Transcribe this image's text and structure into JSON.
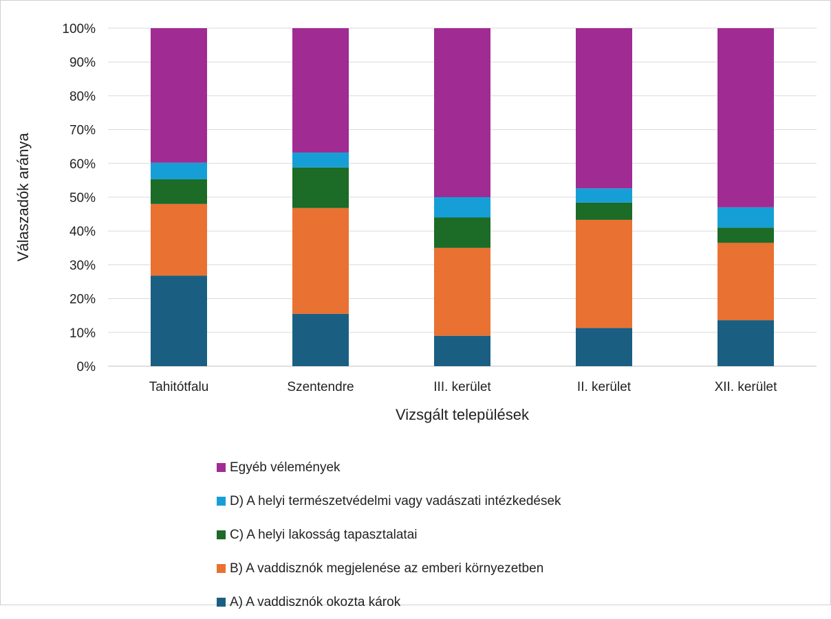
{
  "chart_data": {
    "type": "bar",
    "stacked": true,
    "percent": true,
    "xlabel": "Vizsgált települések",
    "ylabel": "Válaszadók aránya",
    "ylim": [
      0,
      100
    ],
    "yticks": [
      "0%",
      "10%",
      "20%",
      "30%",
      "40%",
      "50%",
      "60%",
      "70%",
      "80%",
      "90%",
      "100%"
    ],
    "grid": true,
    "legend_position": "bottom",
    "categories": [
      "Tahitótfalu",
      "Szentendre",
      "III. kerület",
      "II. kerület",
      "XII. kerület"
    ],
    "series": [
      {
        "name": "A) A vaddisznók okozta károk",
        "color": "#1a5f82",
        "values": [
          26.8,
          15.5,
          9.0,
          11.3,
          13.6
        ]
      },
      {
        "name": "B) A vaddisznók megjelenése az emberi környezetben",
        "color": "#e97132",
        "values": [
          21.2,
          31.3,
          26.0,
          32.0,
          22.9
        ]
      },
      {
        "name": "C) A helyi lakosság tapasztalatai",
        "color": "#1c6b27",
        "values": [
          7.3,
          12.0,
          9.0,
          5.1,
          4.5
        ]
      },
      {
        "name": "D) A helyi természetvédelmi vagy vadászati intézkedések",
        "color": "#169fd7",
        "values": [
          4.9,
          4.4,
          6.0,
          4.2,
          6.0
        ]
      },
      {
        "name": "Egyéb vélemények",
        "color": "#a02b93",
        "values": [
          39.8,
          36.8,
          50.0,
          47.4,
          53.0
        ]
      }
    ]
  },
  "legend_order": [
    4,
    3,
    2,
    1,
    0
  ]
}
